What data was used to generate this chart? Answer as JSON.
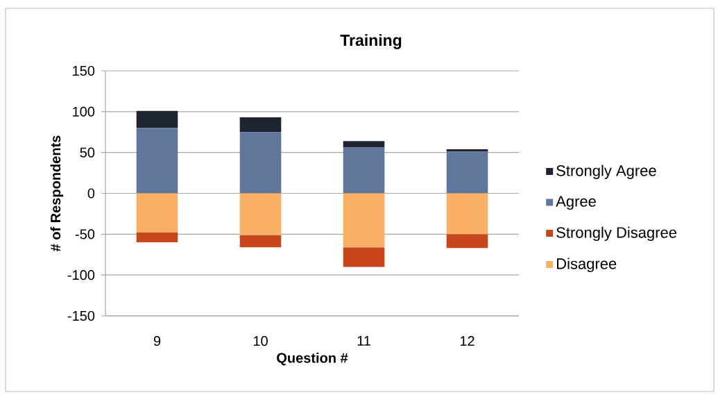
{
  "chart_data": {
    "type": "bar",
    "title": "Training",
    "xlabel": "Question #",
    "ylabel": "# of Respondents",
    "categories": [
      "9",
      "10",
      "11",
      "12"
    ],
    "series": [
      {
        "name": "Disagree",
        "color": "#f9b066",
        "values": [
          -48,
          -51,
          -66,
          -50
        ]
      },
      {
        "name": "Strongly Disagree",
        "color": "#c8461c",
        "values": [
          -12,
          -15,
          -24,
          -17
        ]
      },
      {
        "name": "Agree",
        "color": "#60769a",
        "values": [
          80,
          75,
          56,
          51
        ]
      },
      {
        "name": "Strongly Agree",
        "color": "#1e2432",
        "values": [
          21,
          18,
          8,
          3
        ]
      }
    ],
    "stacked": true,
    "ylim": [
      -150,
      150
    ],
    "yticks": [
      -150,
      -100,
      -50,
      0,
      50,
      100,
      150
    ],
    "grid": "y",
    "legend": "right"
  }
}
